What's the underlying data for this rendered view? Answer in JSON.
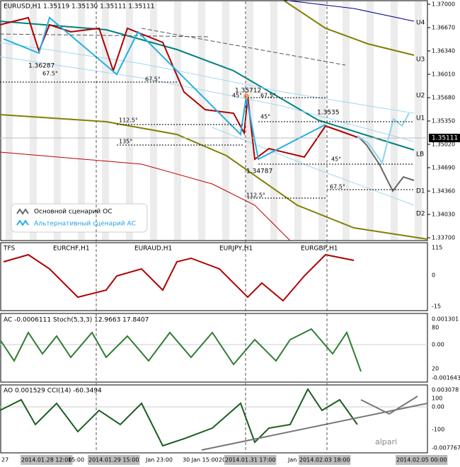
{
  "main": {
    "header": "EURUSD,H1  1.35119 1.35130 1.35111 1.35111",
    "price_axis": [
      "1.37000",
      "1.36670",
      "1.36340",
      "1.36010",
      "1.35680",
      "1.35350",
      "1.35020",
      "1.34690",
      "1.34360",
      "1.34030",
      "1.33700"
    ],
    "current_price": "1.35111",
    "levels": [
      "U4",
      "U3",
      "U2",
      "U1",
      "LB",
      "D1",
      "D2"
    ],
    "annotations": [
      "1.36287",
      "67.5°",
      "67.5°",
      "1.35712",
      "45°",
      "67.5°",
      "45°",
      "1.3535",
      "112.5°",
      "135°",
      "1.34787",
      "45°",
      "67.5°",
      "112.5°"
    ],
    "legend": [
      "Основной сценарий ОС",
      "Альтернативный сценарий АС"
    ]
  },
  "tfs": {
    "title": "TFS",
    "pairs": [
      "EURCHF,H1",
      "EURAUD,H1",
      "EURJPY,H1",
      "EURGBP,H1"
    ],
    "axis": [
      "115",
      "0",
      "-15"
    ]
  },
  "ac": {
    "title": "AC -0.0006111  Stoch(5,3,3) 12.9663 17.8407",
    "axis": [
      "0.001301",
      "80",
      "0.00",
      "20",
      "-0.001643"
    ]
  },
  "ao": {
    "title": "AO 0.001529  CCI(14) -60.3494",
    "axis": [
      "0.003078",
      "100",
      "0.00",
      "-100",
      "-0.007767"
    ],
    "logo": "alpari"
  },
  "time_axis": [
    "27",
    "2014.01.28 12:00",
    "15:00",
    "2014.01.29 15:00",
    "Jan 23:00",
    "30 Jan 15:00",
    "20",
    "2014.01.31 17:00",
    "Jan 2",
    "2014.02.03 18:00",
    "2014.02.05 00:00"
  ]
}
